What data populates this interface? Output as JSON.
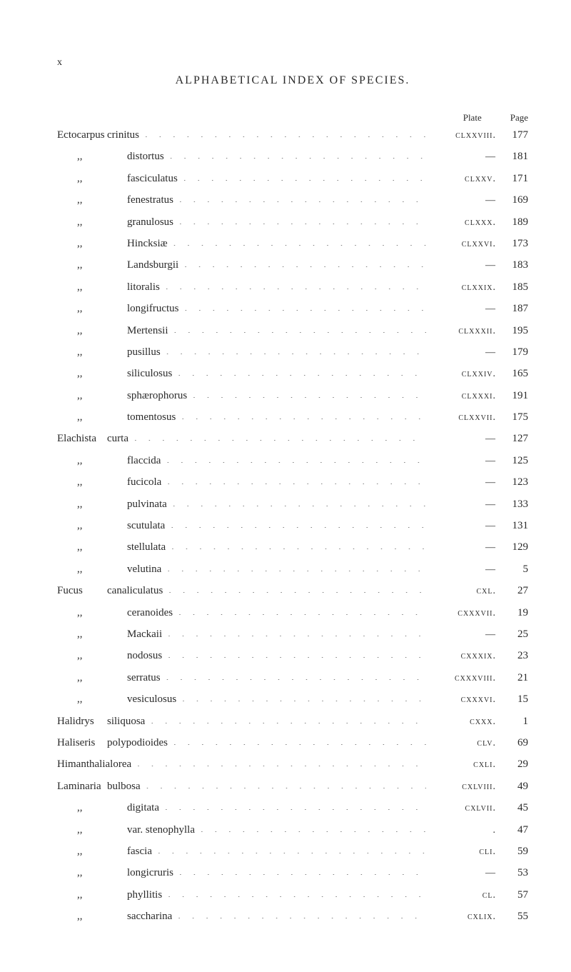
{
  "page_marker": "x",
  "title": "ALPHABETICAL INDEX OF SPECIES.",
  "headers": {
    "plate": "Plate",
    "page": "Page"
  },
  "entries": [
    {
      "genus": "Ectocarpus",
      "species": "crinitus",
      "plate": "clxxviii.",
      "page": "177"
    },
    {
      "ditto": ",,",
      "species": "distortus",
      "plate": "—",
      "page": "181"
    },
    {
      "ditto": ",,",
      "species": "fasciculatus",
      "plate": "clxxv.",
      "page": "171"
    },
    {
      "ditto": ",,",
      "species": "fenestratus",
      "plate": "—",
      "page": "169"
    },
    {
      "ditto": ",,",
      "species": "granulosus",
      "plate": "clxxx.",
      "page": "189"
    },
    {
      "ditto": ",,",
      "species": "Hincksiæ",
      "plate": "clxxvi.",
      "page": "173"
    },
    {
      "ditto": ",,",
      "species": "Landsburgii",
      "plate": "—",
      "page": "183"
    },
    {
      "ditto": ",,",
      "species": "litoralis",
      "plate": "clxxix.",
      "page": "185"
    },
    {
      "ditto": ",,",
      "species": "longifructus",
      "plate": "—",
      "page": "187"
    },
    {
      "ditto": ",,",
      "species": "Mertensii",
      "plate": "clxxxii.",
      "page": "195"
    },
    {
      "ditto": ",,",
      "species": "pusillus",
      "plate": "—",
      "page": "179"
    },
    {
      "ditto": ",,",
      "species": "siliculosus",
      "plate": "clxxiv.",
      "page": "165"
    },
    {
      "ditto": ",,",
      "species": "sphærophorus",
      "plate": "clxxxi.",
      "page": "191"
    },
    {
      "ditto": ",,",
      "species": "tomentosus",
      "plate": "clxxvii.",
      "page": "175"
    },
    {
      "genus": "Elachista",
      "species": "curta",
      "plate": "—",
      "page": "127"
    },
    {
      "ditto": ",,",
      "species": "flaccida",
      "plate": "—",
      "page": "125"
    },
    {
      "ditto": ",,",
      "species": "fucicola",
      "plate": "—",
      "page": "123"
    },
    {
      "ditto": ",,",
      "species": "pulvinata",
      "plate": "—",
      "page": "133"
    },
    {
      "ditto": ",,",
      "species": "scutulata",
      "plate": "—",
      "page": "131"
    },
    {
      "ditto": ",,",
      "species": "stellulata",
      "plate": "—",
      "page": "129"
    },
    {
      "ditto": ",,",
      "species": "velutina",
      "plate": "—",
      "page": "5"
    },
    {
      "genus": "Fucus",
      "species": "canaliculatus",
      "plate": "cxl.",
      "page": "27"
    },
    {
      "ditto": ",,",
      "species": "ceranoides",
      "plate": "cxxxvii.",
      "page": "19"
    },
    {
      "ditto": ",,",
      "species": "Mackaii",
      "plate": "—",
      "page": "25"
    },
    {
      "ditto": ",,",
      "species": "nodosus",
      "plate": "cxxxix.",
      "page": "23"
    },
    {
      "ditto": ",,",
      "species": "serratus",
      "plate": "cxxxviii.",
      "page": "21"
    },
    {
      "ditto": ",,",
      "species": "vesiculosus",
      "plate": "cxxxvi.",
      "page": "15"
    },
    {
      "genus": "Halidrys",
      "species": "siliquosa",
      "plate": "cxxx.",
      "page": "1"
    },
    {
      "genus": "Haliseris",
      "species": "polypodioides",
      "plate": "clv.",
      "page": "69"
    },
    {
      "genus": "Himanthalia",
      "species": "lorea",
      "plate": "cxli.",
      "page": "29"
    },
    {
      "genus": "Laminaria",
      "species": "bulbosa",
      "plate": "cxlviii.",
      "page": "49"
    },
    {
      "ditto": ",,",
      "species": "digitata",
      "plate": "cxlvii.",
      "page": "45"
    },
    {
      "ditto": ",,",
      "species": "var. stenophylla",
      "plate": ".",
      "page": "47"
    },
    {
      "ditto": ",,",
      "species": "fascia",
      "plate": "cli.",
      "page": "59"
    },
    {
      "ditto": ",,",
      "species": "longicruris",
      "plate": "—",
      "page": "53"
    },
    {
      "ditto": ",,",
      "species": "phyllitis",
      "plate": "cl.",
      "page": "57"
    },
    {
      "ditto": ",,",
      "species": "saccharina",
      "plate": "cxlix.",
      "page": "55"
    }
  ]
}
